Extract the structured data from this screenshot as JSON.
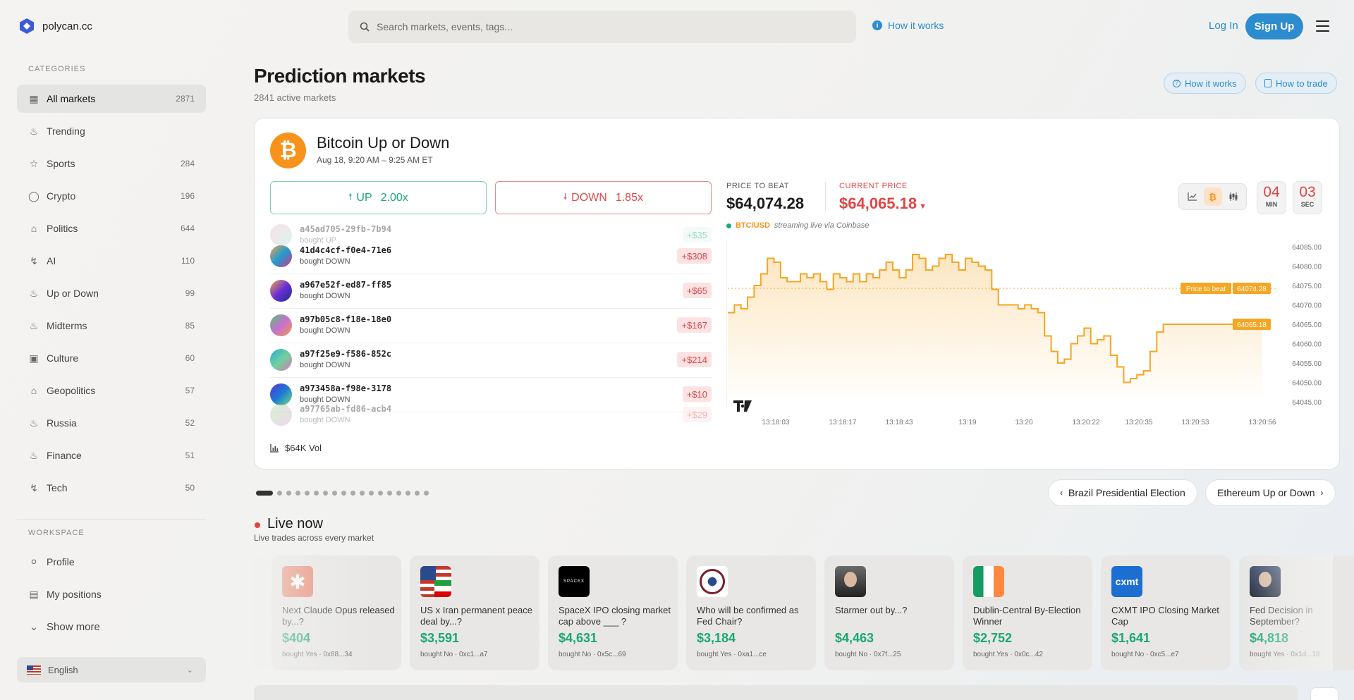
{
  "brand": {
    "name": "polycan.cc",
    "accent": "#2d8ccd"
  },
  "search": {
    "placeholder": "Search markets, events, tags..."
  },
  "header": {
    "how_it_works": "How it works",
    "login": "Log In",
    "signup": "Sign Up"
  },
  "sidebar": {
    "categories_heading": "CATEGORIES",
    "items": [
      {
        "label": "All markets",
        "count": "2871",
        "icon": "grid-icon"
      },
      {
        "label": "Trending",
        "count": "",
        "icon": "flame-icon"
      },
      {
        "label": "Sports",
        "count": "284",
        "icon": "trophy-icon"
      },
      {
        "label": "Crypto",
        "count": "196",
        "icon": "coins-icon"
      },
      {
        "label": "Politics",
        "count": "644",
        "icon": "landmark-icon"
      },
      {
        "label": "AI",
        "count": "110",
        "icon": "zap-icon"
      },
      {
        "label": "Up or Down",
        "count": "99",
        "icon": "flame-icon"
      },
      {
        "label": "Midterms",
        "count": "85",
        "icon": "flame-icon"
      },
      {
        "label": "Culture",
        "count": "60",
        "icon": "film-icon"
      },
      {
        "label": "Geopolitics",
        "count": "57",
        "icon": "landmark-icon"
      },
      {
        "label": "Russia",
        "count": "52",
        "icon": "flame-icon"
      },
      {
        "label": "Finance",
        "count": "51",
        "icon": "flame-icon"
      },
      {
        "label": "Tech",
        "count": "50",
        "icon": "zap-icon"
      }
    ],
    "workspace_heading": "WORKSPACE",
    "workspace": [
      {
        "label": "Profile",
        "icon": "user-icon"
      },
      {
        "label": "My positions",
        "icon": "bar-chart-icon"
      },
      {
        "label": "Show more",
        "icon": "chevron-down-icon"
      }
    ],
    "language": "English"
  },
  "page": {
    "title": "Prediction markets",
    "subtitle": "2841 active markets",
    "how_it_works": "How it works",
    "how_to_trade": "How to trade"
  },
  "featured": {
    "title": "Bitcoin Up or Down",
    "date": "Aug 18, 9:20 AM – 9:25 AM ET",
    "up_label": "UP",
    "up_mult": "2.00x",
    "down_label": "DOWN",
    "down_mult": "1.85x",
    "price_to_beat_label": "PRICE TO BEAT",
    "price_to_beat": "$64,074.28",
    "current_price_label": "CURRENT PRICE",
    "current_price": "$64,065.18",
    "timer_min": "04",
    "timer_min_label": "MIN",
    "timer_sec": "03",
    "timer_sec_label": "SEC",
    "stream_pair": "BTC/USD",
    "stream_text": "streaming live via Coinbase",
    "volume": "$64K Vol",
    "trades": [
      {
        "id": "a45ad705-29fb-7b94",
        "action": "bought UP",
        "amount": "+$35",
        "side": "up",
        "grad": "linear-gradient(135deg,#f4b6c2,#a7e3d9)",
        "faded": true
      },
      {
        "id": "41d4c4cf-f0e4-71e6",
        "action": "bought DOWN",
        "amount": "+$308",
        "side": "down",
        "grad": "linear-gradient(135deg,#f0a04b,#1f9bd1,#d63384)",
        "faded": false
      },
      {
        "id": "a967e52f-ed87-ff85",
        "action": "bought DOWN",
        "amount": "+$65",
        "side": "down",
        "grad": "linear-gradient(135deg,#f4a742,#6b2fd6,#1b2d8f)",
        "faded": false
      },
      {
        "id": "a97b05c8-f18e-18e0",
        "action": "bought DOWN",
        "amount": "+$167",
        "side": "down",
        "grad": "linear-gradient(135deg,#4cc96b,#c76fd1,#f29b4c)",
        "faded": false
      },
      {
        "id": "a97f25e9-f586-852c",
        "action": "bought DOWN",
        "amount": "+$214",
        "side": "down",
        "grad": "linear-gradient(135deg,#2aa9d6,#6ed19c,#d87ab8)",
        "faded": false
      },
      {
        "id": "a973458a-f98e-3178",
        "action": "bought DOWN",
        "amount": "+$10",
        "side": "down",
        "grad": "linear-gradient(135deg,#5b2fd6,#1c7ad6,#6fe07c)",
        "faded": false
      },
      {
        "id": "a97765ab-fd86-acb4",
        "action": "bought DOWN",
        "amount": "+$29",
        "side": "down",
        "grad": "linear-gradient(135deg,#9be28a,#d99ad6)",
        "faded": true
      }
    ]
  },
  "chart_data": {
    "type": "line",
    "title": "",
    "series": [
      {
        "name": "",
        "values": [
          64068,
          64070,
          64069,
          64072,
          64075,
          64078,
          64082,
          64081,
          64077,
          64076,
          64076,
          64078,
          64077,
          64078,
          64076,
          64074,
          64078,
          64077,
          64076,
          64078,
          64076,
          64078,
          64077,
          64079,
          64081,
          64079,
          64077,
          64079,
          64083,
          64082,
          64079,
          64080,
          64082,
          64083,
          64081,
          64079,
          64082,
          64081,
          64080,
          64079,
          64074,
          64070,
          64070,
          64070,
          64069,
          64070,
          64069,
          64068,
          64062,
          64058,
          64055,
          64056,
          64060,
          64062,
          64064,
          64060,
          64061,
          64062,
          64057,
          64054,
          64050,
          64051,
          64052,
          64053,
          64058,
          64063,
          64065,
          64065,
          64065,
          64065,
          64065,
          64065,
          64065,
          64065,
          64065,
          64065,
          64065,
          64065,
          64065,
          64065,
          64065,
          64065
        ]
      }
    ],
    "x_ticks": [
      "13:18:03",
      "13:18:17",
      "13:18:43",
      "13:19",
      "13:20",
      "13:20:22",
      "13:20:35",
      "13:20:53",
      "13:20:56"
    ],
    "y_ticks": [
      64085,
      64080,
      64075,
      64070,
      64065,
      64060,
      64055,
      64050,
      64045
    ],
    "ylim": [
      64045,
      64085
    ],
    "price_to_beat_line": 64074.28,
    "price_to_beat_label": "Price to beat",
    "price_to_beat_value": "64074.28",
    "current_value": "64065.18",
    "line_color": "#f5a623",
    "grid": false
  },
  "carousel": {
    "dot_count": 18,
    "active_dot": 0,
    "prev_label": "Brazil Presidential Election",
    "next_label": "Ethereum Up or Down"
  },
  "live": {
    "title": "Live now",
    "subtitle": "Live trades across every market",
    "cards": [
      {
        "question": "Next Claude Opus released by...?",
        "price": "$404",
        "meta": "bought Yes · 0x88...34",
        "img": "claude"
      },
      {
        "question": "US x Iran permanent peace deal by...?",
        "price": "$3,591",
        "meta": "bought No · 0xc1...a7",
        "img": "flags"
      },
      {
        "question": "SpaceX IPO closing market cap above ___ ?",
        "price": "$4,631",
        "meta": "bought No · 0x5c...69",
        "img": "spacex"
      },
      {
        "question": "Who will be confirmed as Fed Chair?",
        "price": "$3,184",
        "meta": "bought Yes · 0xa1...ce",
        "img": "seal"
      },
      {
        "question": "Starmer out by...?",
        "price": "$4,463",
        "meta": "bought No · 0x7f...25",
        "img": "person"
      },
      {
        "question": "Dublin-Central By-Election Winner",
        "price": "$2,752",
        "meta": "bought Yes · 0x0c...42",
        "img": "ireland"
      },
      {
        "question": "CXMT IPO Closing Market Cap",
        "price": "$1,641",
        "meta": "bought No · 0xc5...e7",
        "img": "cxmt"
      },
      {
        "question": "Fed Decision in September?",
        "price": "$4,818",
        "meta": "bought Yes · 0x1d...18",
        "img": "person2"
      }
    ]
  },
  "colors": {
    "up": "#19a67a",
    "down": "#e04646",
    "bitcoin": "#f7931a"
  }
}
